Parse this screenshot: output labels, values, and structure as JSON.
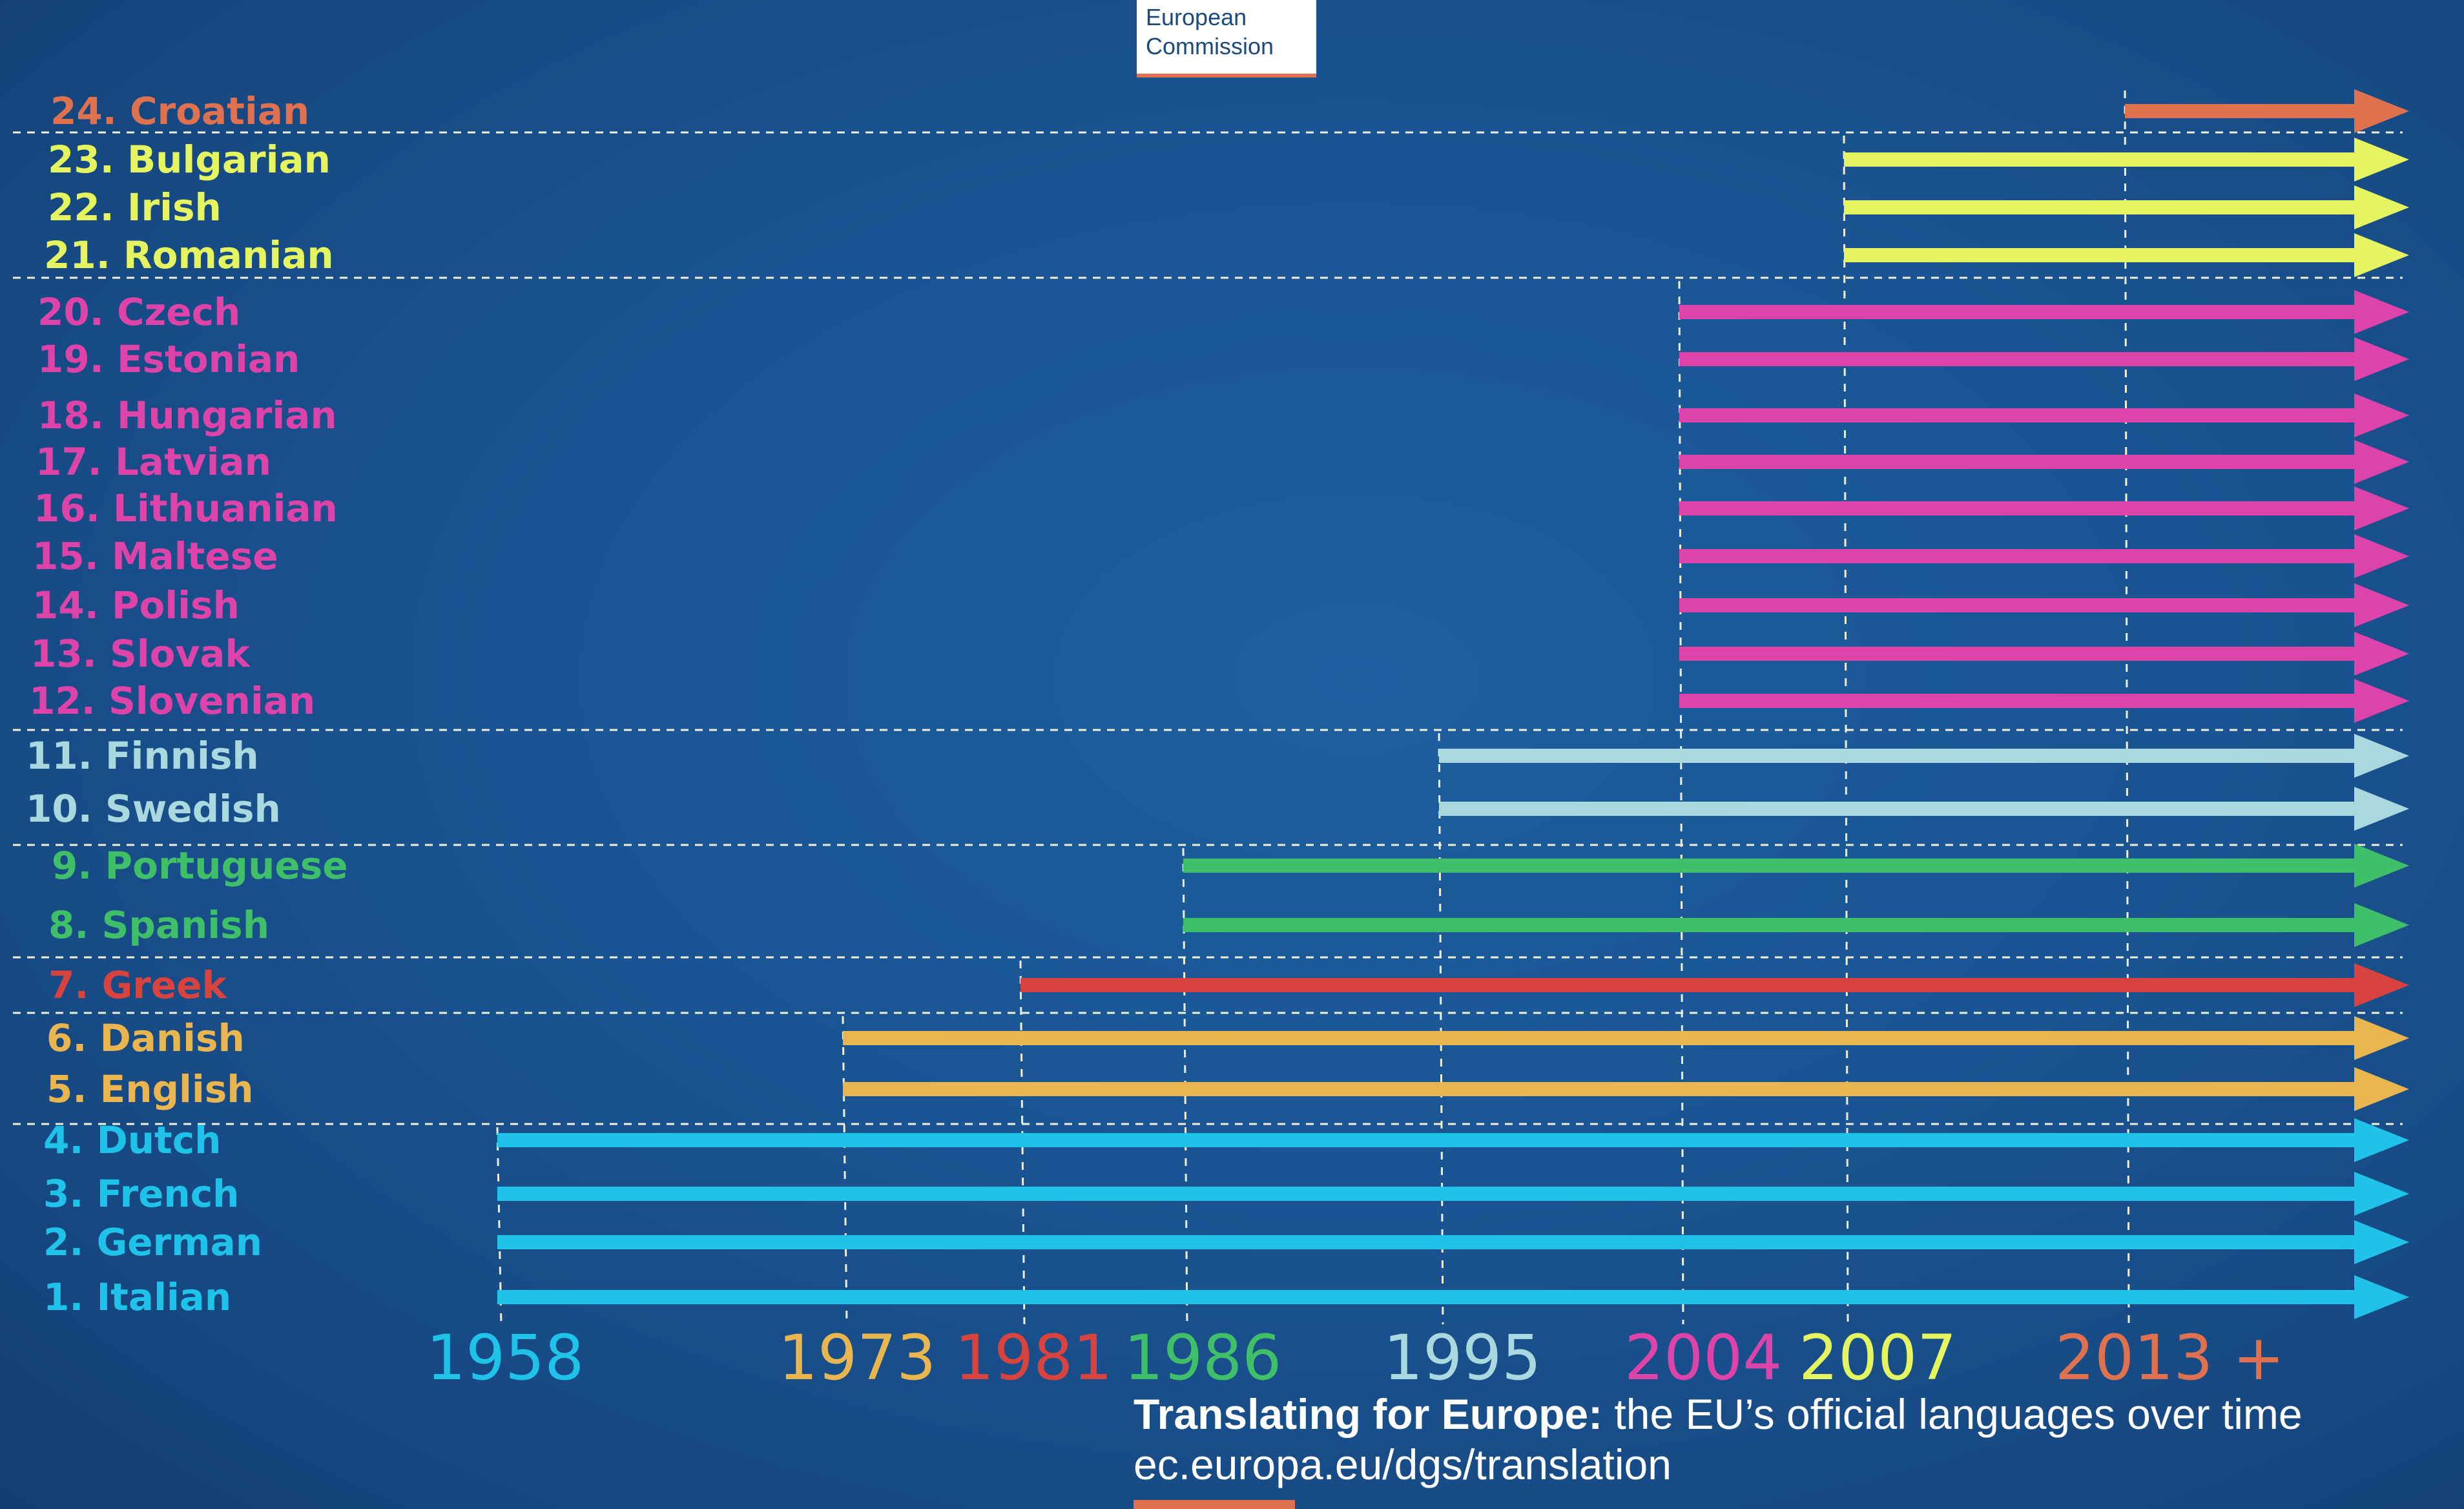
{
  "brand": {
    "line1": "European",
    "line2": "Commission"
  },
  "caption": {
    "title_bold": "Translating for Europe:",
    "title_rest": " the EU’s official languages over time",
    "url": "ec.europa.eu/dgs/translation"
  },
  "chart_data": {
    "type": "timeline-bar",
    "x_axis_ticks": [
      "1958",
      "1973",
      "1981",
      "1986",
      "1995",
      "2004",
      "2007",
      "2013 +"
    ],
    "rows": [
      {
        "label": "24. Croatian",
        "start": "2013",
        "group": "2013"
      },
      {
        "label": "23. Bulgarian",
        "start": "2007",
        "group": "2007"
      },
      {
        "label": "22. Irish",
        "start": "2007",
        "group": "2007"
      },
      {
        "label": "21. Romanian",
        "start": "2007",
        "group": "2007"
      },
      {
        "label": "20. Czech",
        "start": "2004",
        "group": "2004"
      },
      {
        "label": "19. Estonian",
        "start": "2004",
        "group": "2004"
      },
      {
        "label": "18. Hungarian",
        "start": "2004",
        "group": "2004"
      },
      {
        "label": "17. Latvian",
        "start": "2004",
        "group": "2004"
      },
      {
        "label": "16. Lithuanian",
        "start": "2004",
        "group": "2004"
      },
      {
        "label": "15. Maltese",
        "start": "2004",
        "group": "2004"
      },
      {
        "label": "14. Polish",
        "start": "2004",
        "group": "2004"
      },
      {
        "label": "13. Slovak",
        "start": "2004",
        "group": "2004"
      },
      {
        "label": "12. Slovenian",
        "start": "2004",
        "group": "2004"
      },
      {
        "label": "11. Finnish",
        "start": "1995",
        "group": "1995"
      },
      {
        "label": "10. Swedish",
        "start": "1995",
        "group": "1995"
      },
      {
        "label": "9. Portuguese",
        "start": "1986",
        "group": "1986"
      },
      {
        "label": "8. Spanish",
        "start": "1986",
        "group": "1986"
      },
      {
        "label": "7. Greek",
        "start": "1981",
        "group": "1981"
      },
      {
        "label": "6. Danish",
        "start": "1973",
        "group": "1973"
      },
      {
        "label": "5. English",
        "start": "1973",
        "group": "1973"
      },
      {
        "label": "4. Dutch",
        "start": "1958",
        "group": "1958"
      },
      {
        "label": "3. French",
        "start": "1958",
        "group": "1958"
      },
      {
        "label": "2. German",
        "start": "1958",
        "group": "1958"
      },
      {
        "label": "1. Italian",
        "start": "1958",
        "group": "1958"
      }
    ],
    "group_colors": {
      "1958": "#1fc3ea",
      "1973": "#e9b54f",
      "1981": "#d9433f",
      "1986": "#3fbf68",
      "1995": "#a9d8df",
      "2004": "#de43aa",
      "2007": "#e5f55f",
      "2013": "#e0714f"
    },
    "arrow_end": "present",
    "grid": "dashed"
  }
}
